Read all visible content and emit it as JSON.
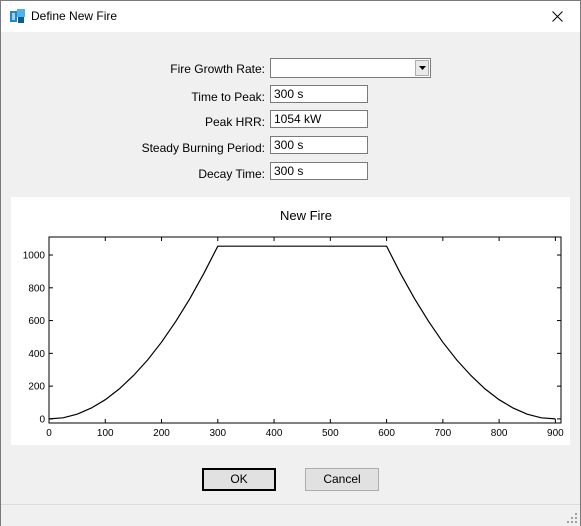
{
  "window": {
    "title": "Define New Fire",
    "icon": "app-icon",
    "close_icon": "close-icon"
  },
  "form": {
    "growth_rate": {
      "label": "Fire Growth Rate:",
      "value": ""
    },
    "time_to_peak": {
      "label": "Time to Peak:",
      "value": "300 s"
    },
    "peak_hrr": {
      "label": "Peak HRR:",
      "value": "1054 kW"
    },
    "steady_period": {
      "label": "Steady Burning Period:",
      "value": "300 s"
    },
    "decay_time": {
      "label": "Decay Time:",
      "value": "300 s"
    }
  },
  "buttons": {
    "ok": "OK",
    "cancel": "Cancel"
  },
  "chart_data": {
    "type": "line",
    "title": "New Fire",
    "xlabel": "",
    "ylabel": "",
    "xlim": [
      0,
      910
    ],
    "ylim": [
      -25,
      1110
    ],
    "x_ticks": [
      0,
      100,
      200,
      300,
      400,
      500,
      600,
      700,
      800,
      900
    ],
    "y_ticks": [
      0,
      200,
      400,
      600,
      800,
      1000
    ],
    "grid": false,
    "legend": "none",
    "line_color": "#000000",
    "series": [
      {
        "x": [
          0,
          25,
          50,
          75,
          100,
          125,
          150,
          175,
          200,
          225,
          250,
          275,
          300,
          600,
          625,
          650,
          675,
          700,
          725,
          750,
          775,
          800,
          825,
          850,
          875,
          900
        ],
        "y": [
          0,
          7,
          29,
          66,
          117,
          183,
          264,
          359,
          468,
          593,
          732,
          886,
          1054,
          1054,
          886,
          732,
          593,
          468,
          359,
          264,
          183,
          117,
          66,
          29,
          7,
          0
        ]
      }
    ]
  }
}
